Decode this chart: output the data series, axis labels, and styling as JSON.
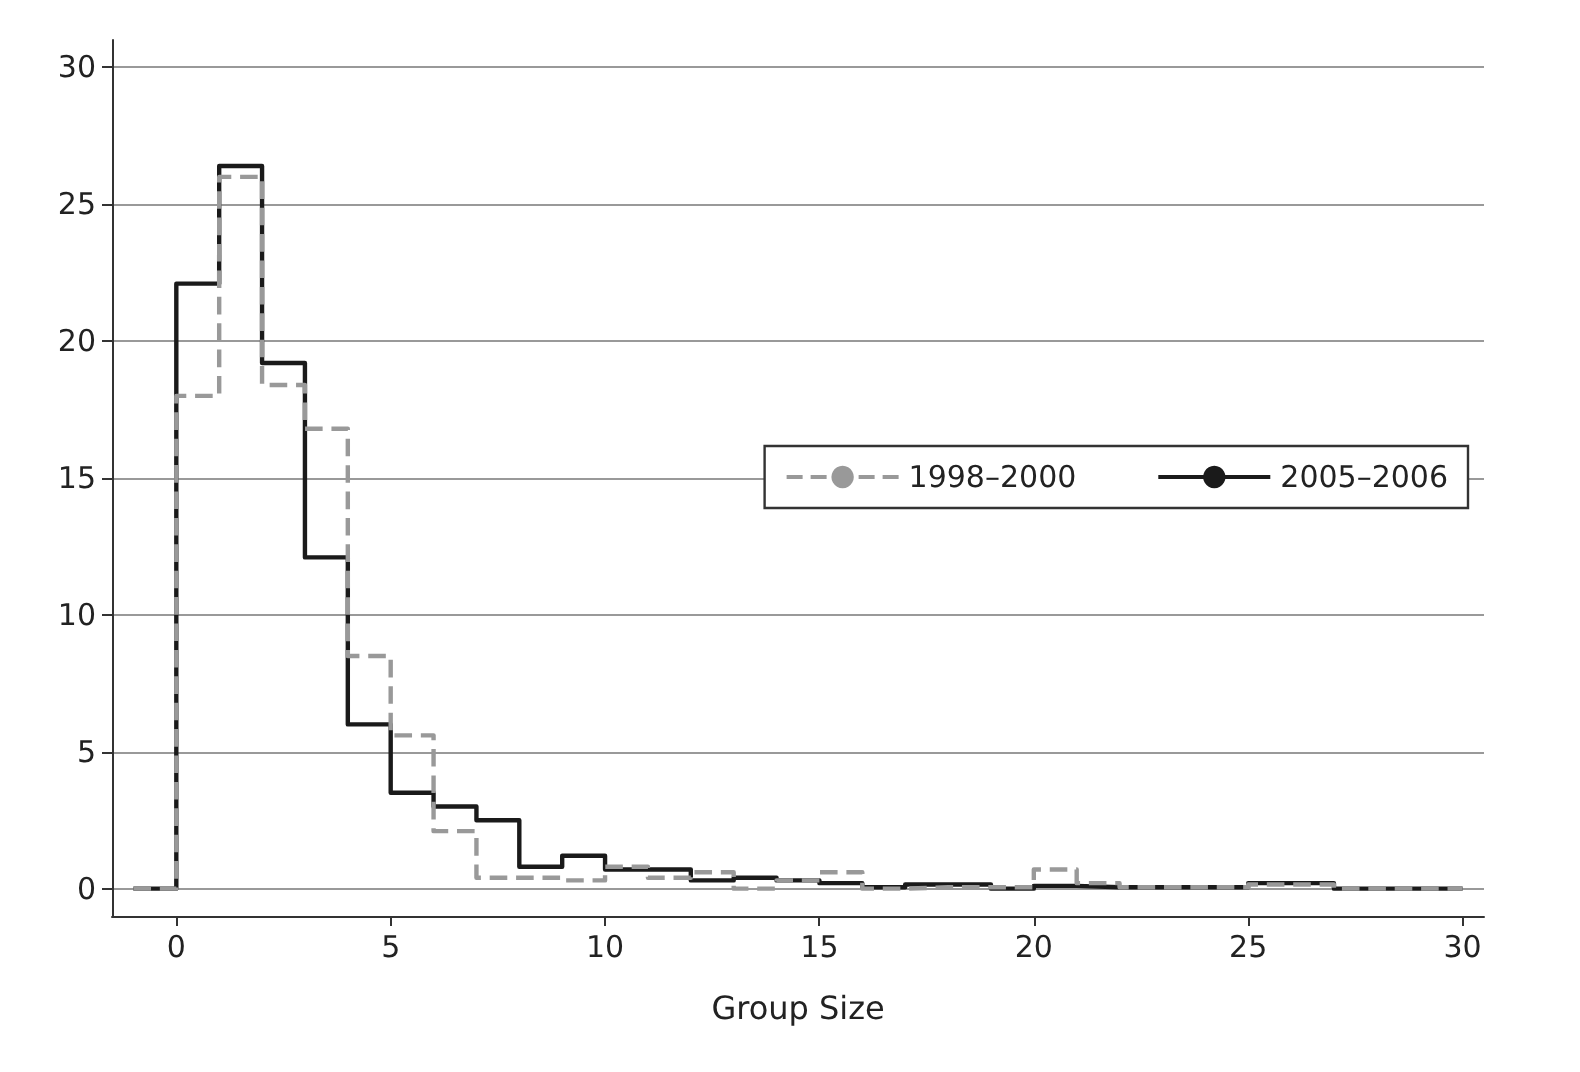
{
  "chart_data": {
    "type": "step",
    "xlabel": "Group Size",
    "x": [
      -1,
      0,
      1,
      2,
      3,
      4,
      5,
      6,
      7,
      8,
      9,
      10,
      11,
      12,
      13,
      14,
      15,
      16,
      17,
      18,
      19,
      20,
      21,
      22,
      23,
      24,
      25,
      26,
      27,
      28,
      29,
      30
    ],
    "series": [
      {
        "name": "1998–2000",
        "color": "#999999",
        "line_style": "dashed",
        "values": [
          0,
          18.0,
          26.0,
          18.4,
          16.8,
          8.5,
          5.6,
          2.1,
          0.4,
          0.4,
          0.3,
          0.8,
          0.4,
          0.6,
          0.0,
          0.3,
          0.6,
          0.0,
          0.05,
          0.05,
          0.05,
          0.7,
          0.2,
          0.05,
          0.05,
          0.05,
          0.15,
          0.15,
          0,
          0,
          0,
          0
        ]
      },
      {
        "name": "2005–2006",
        "color": "#1a1a1a",
        "line_style": "solid",
        "values": [
          0,
          22.1,
          26.4,
          19.2,
          12.1,
          6.0,
          3.5,
          3.0,
          2.5,
          0.8,
          1.2,
          0.7,
          0.7,
          0.3,
          0.4,
          0.3,
          0.2,
          0.05,
          0.15,
          0.15,
          0.0,
          0.1,
          0.05,
          0.05,
          0.05,
          0.05,
          0.2,
          0.2,
          0,
          0,
          0,
          0
        ]
      }
    ],
    "xlim": [
      -1.5,
      30.5
    ],
    "xticks": [
      0,
      5,
      10,
      15,
      20,
      25,
      30
    ],
    "ylim": [
      -1,
      31
    ],
    "yticks": [
      0,
      5,
      10,
      15,
      20,
      25,
      30
    ],
    "grid": "y",
    "legend": "right",
    "marker": "none"
  }
}
